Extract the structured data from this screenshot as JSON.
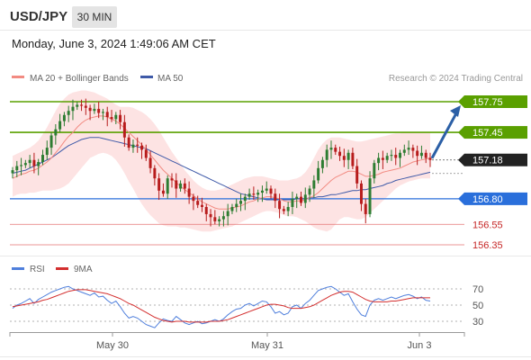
{
  "header": {
    "pair": "USD/JPY",
    "timeframe": "30 MIN",
    "datetime": "Monday, June 3, 2024 1:49:06 AM CET"
  },
  "legend": {
    "ma20_label": "MA 20 + Bollinger Bands",
    "ma50_label": "MA 50",
    "credit": "Research © 2024 Trading Central"
  },
  "rsi_legend": {
    "rsi_label": "RSI",
    "ma_label": "9MA"
  },
  "colors": {
    "candle_up": "#2e7d32",
    "candle_down": "#b71c1c",
    "ma20": "#f28b82",
    "ma50": "#3f5aa8",
    "bollinger_fill": "#fde0e0",
    "resistance": "#5aa000",
    "support_blue": "#2a6fdb",
    "support_red": "#e57373",
    "arrow": "#2b5fa6",
    "rsi": "#4f7fdc",
    "rsi_ma": "#d32f2f"
  },
  "chart_data": [
    {
      "type": "candlestick",
      "title": "USD/JPY 30 MIN",
      "x_tick_labels": [
        "May 30",
        "May 31",
        "Jun 3"
      ],
      "y_range": [
        156.2,
        157.9
      ],
      "levels": [
        {
          "value": 157.75,
          "label": "157.75",
          "kind": "resistance"
        },
        {
          "value": 157.45,
          "label": "157.45",
          "kind": "resistance"
        },
        {
          "value": 157.18,
          "label": "157.18",
          "kind": "current"
        },
        {
          "value": 156.8,
          "label": "156.80",
          "kind": "support"
        },
        {
          "value": 156.55,
          "label": "156.55",
          "kind": "support"
        },
        {
          "value": 156.35,
          "label": "156.35",
          "kind": "support"
        }
      ],
      "close": [
        157.08,
        157.12,
        157.13,
        157.15,
        157.18,
        157.12,
        157.16,
        157.23,
        157.3,
        157.42,
        157.48,
        157.56,
        157.62,
        157.66,
        157.7,
        157.72,
        157.71,
        157.69,
        157.66,
        157.68,
        157.64,
        157.65,
        157.6,
        157.58,
        157.62,
        157.55,
        157.4,
        157.3,
        157.33,
        157.32,
        157.28,
        157.2,
        157.1,
        157.0,
        156.88,
        156.85,
        157.0,
        156.98,
        156.9,
        156.95,
        156.9,
        156.82,
        156.78,
        156.74,
        156.72,
        156.65,
        156.62,
        156.58,
        156.6,
        156.63,
        156.68,
        156.72,
        156.75,
        156.78,
        156.82,
        156.85,
        156.84,
        156.86,
        156.88,
        156.9,
        156.85,
        156.78,
        156.7,
        156.68,
        156.72,
        156.8,
        156.82,
        156.76,
        156.84,
        156.9,
        156.98,
        157.1,
        157.18,
        157.28,
        157.3,
        157.26,
        157.22,
        157.18,
        157.25,
        157.12,
        156.95,
        156.75,
        156.65,
        157.0,
        157.15,
        157.2,
        157.18,
        157.22,
        157.23,
        157.2,
        157.25,
        157.28,
        157.3,
        157.27,
        157.22,
        157.25,
        157.2,
        157.18
      ],
      "ma20": [
        157.0,
        157.02,
        157.04,
        157.05,
        157.07,
        157.08,
        157.1,
        157.13,
        157.16,
        157.2,
        157.25,
        157.3,
        157.36,
        157.41,
        157.45,
        157.5,
        157.54,
        157.57,
        157.59,
        157.6,
        157.61,
        157.61,
        157.6,
        157.58,
        157.56,
        157.53,
        157.49,
        157.45,
        157.41,
        157.37,
        157.33,
        157.28,
        157.23,
        157.18,
        157.13,
        157.08,
        157.04,
        157.0,
        156.96,
        156.92,
        156.89,
        156.86,
        156.83,
        156.8,
        156.77,
        156.75,
        156.73,
        156.71,
        156.7,
        156.7,
        156.7,
        156.71,
        156.72,
        156.73,
        156.75,
        156.77,
        156.78,
        156.8,
        156.81,
        156.82,
        156.82,
        156.81,
        156.8,
        156.78,
        156.77,
        156.77,
        156.78,
        156.78,
        156.79,
        156.81,
        156.83,
        156.86,
        156.9,
        156.94,
        156.98,
        157.01,
        157.03,
        157.05,
        157.07,
        157.07,
        157.06,
        157.04,
        157.02,
        157.02,
        157.03,
        157.04,
        157.06,
        157.07,
        157.08,
        157.09,
        157.1,
        157.12,
        157.14,
        157.16,
        157.17,
        157.18,
        157.19,
        157.2
      ],
      "bollinger_upper": [
        157.22,
        157.24,
        157.26,
        157.28,
        157.3,
        157.33,
        157.37,
        157.43,
        157.5,
        157.58,
        157.66,
        157.73,
        157.78,
        157.82,
        157.84,
        157.85,
        157.86,
        157.86,
        157.85,
        157.84,
        157.82,
        157.8,
        157.78,
        157.75,
        157.72,
        157.7,
        157.7,
        157.7,
        157.69,
        157.67,
        157.65,
        157.62,
        157.58,
        157.53,
        157.47,
        157.4,
        157.33,
        157.26,
        157.2,
        157.14,
        157.08,
        157.03,
        156.98,
        156.94,
        156.91,
        156.89,
        156.88,
        156.88,
        156.89,
        156.9,
        156.92,
        156.94,
        156.96,
        156.98,
        157.0,
        157.01,
        157.02,
        157.02,
        157.02,
        157.01,
        157.0,
        156.99,
        156.98,
        156.98,
        156.98,
        156.99,
        157.0,
        157.02,
        157.06,
        157.12,
        157.2,
        157.28,
        157.34,
        157.38,
        157.4,
        157.4,
        157.4,
        157.39,
        157.38,
        157.37,
        157.36,
        157.36,
        157.37,
        157.38,
        157.39,
        157.4,
        157.41,
        157.42,
        157.43,
        157.44,
        157.44,
        157.45,
        157.45,
        157.45,
        157.45,
        157.45,
        157.45,
        157.45
      ],
      "bollinger_lower": [
        156.82,
        156.84,
        156.85,
        156.85,
        156.86,
        156.86,
        156.87,
        156.88,
        156.88,
        156.88,
        156.89,
        156.9,
        156.92,
        156.95,
        157.0,
        157.05,
        157.1,
        157.15,
        157.2,
        157.22,
        157.24,
        157.25,
        157.24,
        157.22,
        157.18,
        157.12,
        157.05,
        156.97,
        156.9,
        156.82,
        156.75,
        156.69,
        156.64,
        156.6,
        156.56,
        156.54,
        156.53,
        156.53,
        156.53,
        156.52,
        156.52,
        156.51,
        156.5,
        156.49,
        156.48,
        156.48,
        156.48,
        156.49,
        156.5,
        156.51,
        156.52,
        156.53,
        156.55,
        156.57,
        156.59,
        156.61,
        156.63,
        156.65,
        156.67,
        156.68,
        156.68,
        156.67,
        156.66,
        156.64,
        156.63,
        156.63,
        156.62,
        156.6,
        156.58,
        156.55,
        156.52,
        156.5,
        156.49,
        156.48,
        156.5,
        156.55,
        156.6,
        156.62,
        156.62,
        156.61,
        156.6,
        156.6,
        156.62,
        156.66,
        156.7,
        156.74,
        156.78,
        156.82,
        156.86,
        156.9,
        156.93,
        156.95,
        156.97,
        156.98,
        156.99,
        157.0,
        157.0,
        157.0
      ],
      "ma50": [
        157.05,
        157.06,
        157.07,
        157.08,
        157.1,
        157.12,
        157.14,
        157.16,
        157.18,
        157.2,
        157.23,
        157.26,
        157.29,
        157.32,
        157.34,
        157.36,
        157.38,
        157.39,
        157.4,
        157.4,
        157.4,
        157.39,
        157.38,
        157.37,
        157.36,
        157.35,
        157.34,
        157.33,
        157.32,
        157.31,
        157.3,
        157.29,
        157.27,
        157.25,
        157.23,
        157.21,
        157.19,
        157.17,
        157.15,
        157.13,
        157.11,
        157.09,
        157.07,
        157.05,
        157.03,
        157.01,
        156.99,
        156.97,
        156.95,
        156.93,
        156.91,
        156.89,
        156.87,
        156.85,
        156.84,
        156.83,
        156.82,
        156.81,
        156.8,
        156.79,
        156.79,
        156.79,
        156.79,
        156.79,
        156.79,
        156.79,
        156.8,
        156.8,
        156.8,
        156.81,
        156.81,
        156.82,
        156.82,
        156.83,
        156.84,
        156.84,
        156.85,
        156.86,
        156.87,
        156.88,
        156.88,
        156.89,
        156.89,
        156.9,
        156.91,
        156.92,
        156.93,
        156.95,
        156.96,
        156.98,
        156.99,
        157.0,
        157.01,
        157.02,
        157.03,
        157.04,
        157.05,
        157.06
      ]
    },
    {
      "type": "line",
      "title": "RSI",
      "y_tick_labels": [
        "70",
        "50",
        "30"
      ],
      "y_range": [
        20,
        80
      ],
      "series": [
        {
          "name": "RSI",
          "values": [
            46,
            50,
            52,
            55,
            58,
            52,
            57,
            60,
            63,
            66,
            68,
            70,
            72,
            73,
            70,
            68,
            66,
            64,
            62,
            65,
            60,
            61,
            56,
            52,
            55,
            48,
            40,
            34,
            36,
            34,
            30,
            26,
            24,
            22,
            28,
            33,
            31,
            30,
            36,
            32,
            28,
            26,
            28,
            30,
            27,
            28,
            30,
            32,
            30,
            33,
            38,
            42,
            45,
            46,
            50,
            52,
            49,
            52,
            55,
            54,
            48,
            40,
            42,
            38,
            40,
            48,
            50,
            46,
            52,
            56,
            62,
            68,
            70,
            72,
            73,
            70,
            66,
            62,
            64,
            54,
            45,
            38,
            36,
            50,
            56,
            58,
            56,
            58,
            60,
            58,
            60,
            62,
            63,
            61,
            58,
            60,
            56,
            55
          ]
        },
        {
          "name": "9MA",
          "values": [
            48,
            49,
            50,
            51,
            52,
            53,
            54,
            56,
            57,
            59,
            61,
            63,
            65,
            67,
            68,
            69,
            69,
            69,
            68,
            67,
            66,
            65,
            64,
            62,
            60,
            58,
            55,
            52,
            50,
            47,
            44,
            41,
            38,
            35,
            33,
            31,
            30,
            29,
            30,
            30,
            30,
            29,
            29,
            29,
            29,
            29,
            30,
            30,
            30,
            31,
            32,
            34,
            36,
            38,
            40,
            42,
            44,
            46,
            48,
            50,
            51,
            51,
            50,
            49,
            47,
            46,
            46,
            46,
            47,
            48,
            50,
            53,
            56,
            59,
            62,
            64,
            66,
            67,
            67,
            66,
            63,
            60,
            57,
            55,
            54,
            54,
            54,
            54,
            55,
            55,
            56,
            57,
            58,
            59,
            59,
            59,
            59,
            59
          ]
        }
      ]
    }
  ]
}
